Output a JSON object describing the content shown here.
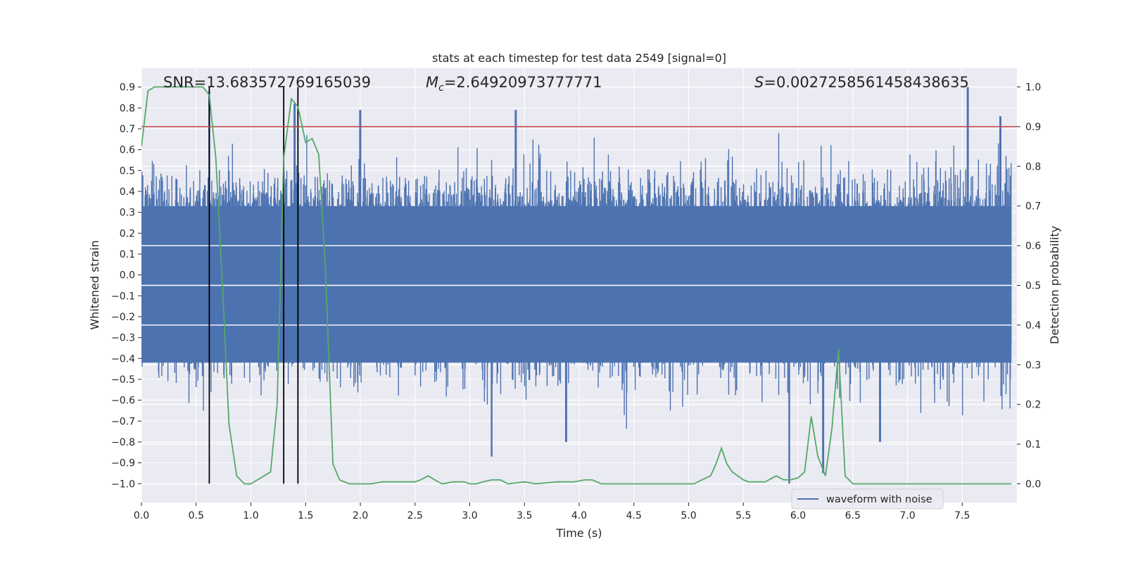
{
  "chart_data": {
    "type": "line",
    "title": "stats at each timestep for test data 2549 [signal=0]",
    "xlabel": "Time (s)",
    "ylabel": "Whitened strain",
    "y2label": "Detection probability",
    "xlim": [
      0,
      8
    ],
    "ylim": [
      -1.09,
      0.99
    ],
    "y2lim": [
      -0.047,
      1.047
    ],
    "x_ticks": [
      "0.0",
      "0.5",
      "1.0",
      "1.5",
      "2.0",
      "2.5",
      "3.0",
      "3.5",
      "4.0",
      "4.5",
      "5.0",
      "5.5",
      "6.0",
      "6.5",
      "7.0",
      "7.5"
    ],
    "y_ticks": [
      "0.9",
      "0.8",
      "0.7",
      "0.6",
      "0.5",
      "0.4",
      "0.3",
      "0.2",
      "0.1",
      "0.0",
      "−0.1",
      "−0.2",
      "−0.3",
      "−0.4",
      "−0.5",
      "−0.6",
      "−0.7",
      "−0.8",
      "−0.9",
      "−1.0"
    ],
    "y2_ticks": [
      "1.0",
      "0.9",
      "0.8",
      "0.7",
      "0.6",
      "0.5",
      "0.4",
      "0.3",
      "0.2",
      "0.1",
      "0.0"
    ],
    "grid": true,
    "legend": {
      "placement": "lower-right",
      "entries": [
        "waveform with noise"
      ]
    },
    "annotations": {
      "snr": "SNR=13.683572769165039",
      "mc_symbol": "M",
      "mc_sub": "c",
      "mc_value": "=2.64920973777771",
      "s_symbol": "S",
      "s_value": "=0.0027258561458438635"
    },
    "series": [
      {
        "name": "waveform with noise",
        "color": "#4c72b0",
        "style": "dense noisy waveform",
        "range_approx": [
          -1.0,
          0.9
        ],
        "notable_peaks": [
          {
            "x": 0.62,
            "y": 0.88
          },
          {
            "x": 1.4,
            "y": 0.82
          },
          {
            "x": 2.0,
            "y": 0.79
          },
          {
            "x": 3.42,
            "y": 0.79
          },
          {
            "x": 7.55,
            "y": 0.9
          },
          {
            "x": 7.85,
            "y": 0.76
          }
        ],
        "notable_troughs": [
          {
            "x": 3.2,
            "y": -0.87
          },
          {
            "x": 3.88,
            "y": -0.8
          },
          {
            "x": 5.92,
            "y": -1.0
          },
          {
            "x": 6.23,
            "y": -0.95
          },
          {
            "x": 6.75,
            "y": -0.8
          }
        ]
      },
      {
        "color": "#55a868",
        "axis": "right",
        "x": [
          0.0,
          0.06,
          0.12,
          0.2,
          0.3,
          0.4,
          0.5,
          0.56,
          0.62,
          0.68,
          0.74,
          0.8,
          0.87,
          0.94,
          1.0,
          1.06,
          1.12,
          1.18,
          1.24,
          1.3,
          1.37,
          1.43,
          1.5,
          1.56,
          1.62,
          1.68,
          1.75,
          1.81,
          1.9,
          2.0,
          2.1,
          2.2,
          2.35,
          2.5,
          2.55,
          2.62,
          2.68,
          2.75,
          2.85,
          2.95,
          3.0,
          3.06,
          3.12,
          3.2,
          3.28,
          3.35,
          3.5,
          3.6,
          3.8,
          3.95,
          4.05,
          4.12,
          4.2,
          4.4,
          4.6,
          4.8,
          5.0,
          5.05,
          5.12,
          5.2,
          5.25,
          5.3,
          5.35,
          5.4,
          5.45,
          5.5,
          5.55,
          5.62,
          5.7,
          5.8,
          5.87,
          5.93,
          6.0,
          6.06,
          6.12,
          6.18,
          6.25,
          6.31,
          6.37,
          6.43,
          6.5,
          6.56,
          6.62,
          6.7,
          6.8,
          7.0,
          7.2,
          7.5,
          7.8,
          7.95
        ],
        "values": [
          0.85,
          0.99,
          1.0,
          1.0,
          1.0,
          1.0,
          1.0,
          1.0,
          0.98,
          0.82,
          0.5,
          0.15,
          0.02,
          0.0,
          0.0,
          0.01,
          0.02,
          0.03,
          0.2,
          0.82,
          0.97,
          0.95,
          0.86,
          0.87,
          0.83,
          0.55,
          0.05,
          0.01,
          0.0,
          0.0,
          0.0,
          0.005,
          0.005,
          0.005,
          0.01,
          0.02,
          0.01,
          0.0,
          0.005,
          0.005,
          0.0,
          0.0,
          0.005,
          0.01,
          0.01,
          0.0,
          0.005,
          0.0,
          0.005,
          0.005,
          0.01,
          0.01,
          0.0,
          0.0,
          0.0,
          0.0,
          0.0,
          0.0,
          0.01,
          0.02,
          0.05,
          0.09,
          0.05,
          0.03,
          0.02,
          0.01,
          0.005,
          0.005,
          0.005,
          0.02,
          0.01,
          0.01,
          0.015,
          0.03,
          0.17,
          0.07,
          0.02,
          0.14,
          0.34,
          0.02,
          0.0,
          0.0,
          0.0,
          0.0,
          0.0,
          0.0,
          0.0,
          0.0,
          0.0,
          0.0
        ]
      },
      {
        "color": "#c44e52",
        "axis": "right",
        "style": "horizontal threshold line",
        "y": 0.9
      },
      {
        "color": "#000000",
        "style": "vertical marker lines",
        "x": [
          0.62,
          1.3,
          1.43
        ],
        "y_range": [
          -1.0,
          0.9
        ]
      }
    ]
  }
}
